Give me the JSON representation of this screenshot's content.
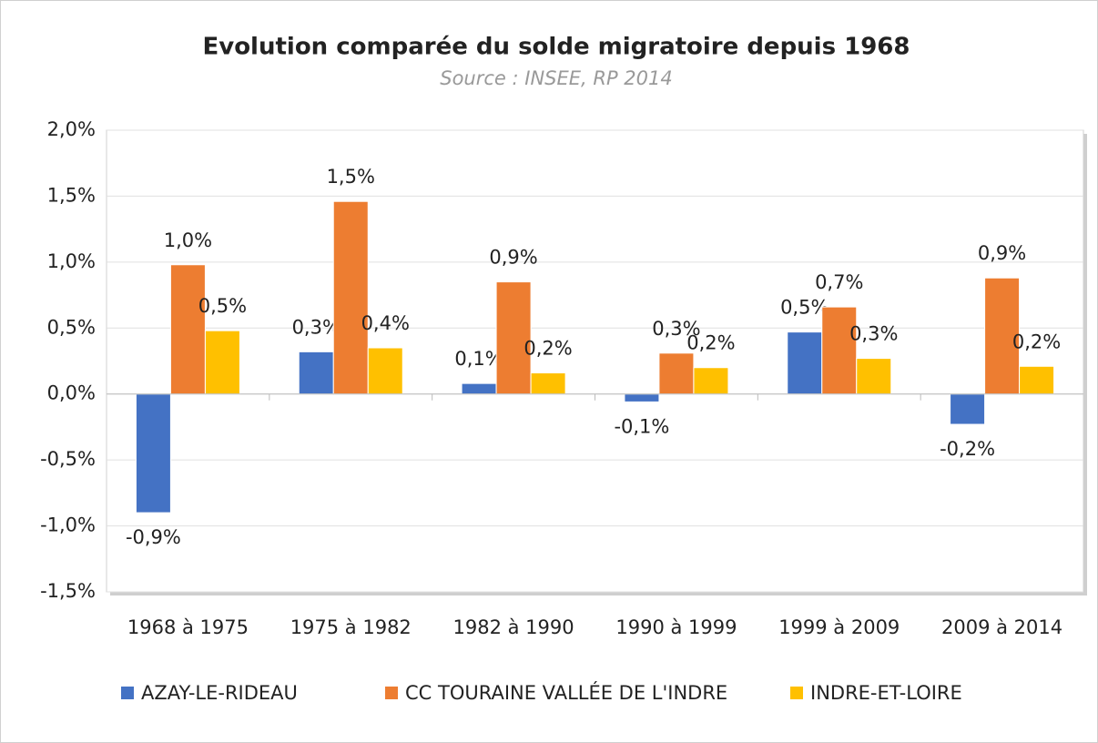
{
  "chart_data": {
    "type": "bar",
    "title": "Evolution comparée du solde migratoire depuis 1968",
    "subtitle": "Source : INSEE, RP 2014",
    "categories": [
      "1968 à 1975",
      "1975 à 1982",
      "1982 à 1990",
      "1990 à 1999",
      "1999 à 2009",
      "2009 à 2014"
    ],
    "series": [
      {
        "name": "AZAY-LE-RIDEAU",
        "color": "#4472c4",
        "values": [
          -0.9,
          0.32,
          0.08,
          -0.06,
          0.47,
          -0.23
        ],
        "value_labels": [
          "-0,9%",
          "0,3%",
          "0,1%",
          "-0,1%",
          "0,5%",
          "-0,2%"
        ]
      },
      {
        "name": "CC TOURAINE VALLÉE DE L'INDRE",
        "color": "#ed7d31",
        "values": [
          0.98,
          1.46,
          0.85,
          0.31,
          0.66,
          0.88
        ],
        "value_labels": [
          "1,0%",
          "1,5%",
          "0,9%",
          "0,3%",
          "0,7%",
          "0,9%"
        ]
      },
      {
        "name": "INDRE-ET-LOIRE",
        "color": "#ffc000",
        "values": [
          0.48,
          0.35,
          0.16,
          0.2,
          0.27,
          0.21
        ],
        "value_labels": [
          "0,5%",
          "0,4%",
          "0,2%",
          "0,2%",
          "0,3%",
          "0,2%"
        ]
      }
    ],
    "ylim": [
      -1.5,
      2.0
    ],
    "yticks": [
      {
        "value": -1.5,
        "label": "-1,5%"
      },
      {
        "value": -1.0,
        "label": "-1,0%"
      },
      {
        "value": -0.5,
        "label": "-0,5%"
      },
      {
        "value": 0,
        "label": "0,0%"
      },
      {
        "value": 0.5,
        "label": "0,5%"
      },
      {
        "value": 1.0,
        "label": "1,0%"
      },
      {
        "value": 1.5,
        "label": "1,5%"
      },
      {
        "value": 2.0,
        "label": "2,0%"
      }
    ],
    "grid": true,
    "legend": "bottom"
  }
}
